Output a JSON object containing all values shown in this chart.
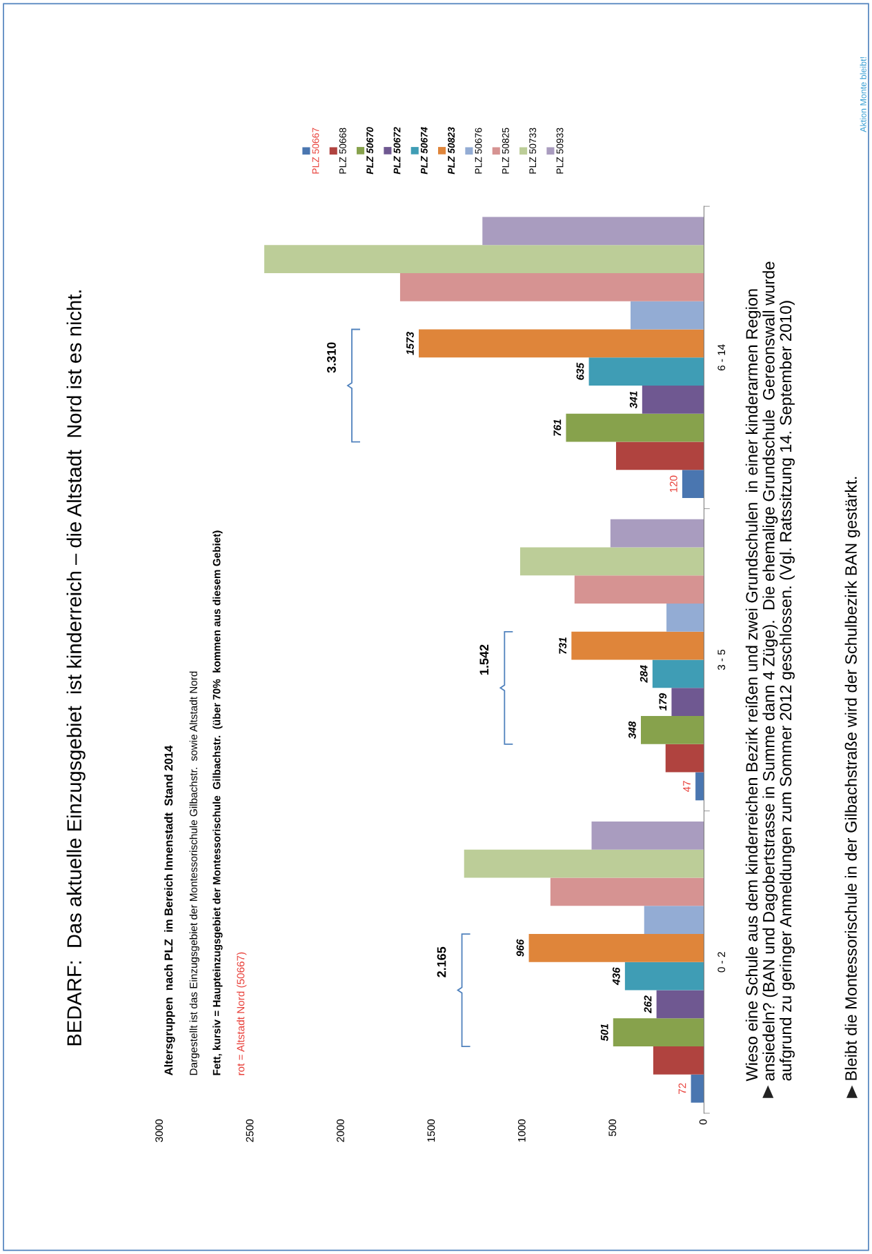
{
  "chart_data": {
    "type": "bar",
    "orientation": "horizontal",
    "title": "BEDARF:  Das aktuelle Einzugsgebiet  ist kinderreich – die Altstadt  Nord ist es nicht.",
    "categories": [
      "6 - 14",
      "3 - 5",
      "0 - 2"
    ],
    "xlim": [
      3000,
      0
    ],
    "xticks": [
      0,
      500,
      1000,
      1500,
      2000,
      2500,
      3000
    ],
    "legend": "top",
    "series": [
      {
        "name": "PLZ 50667",
        "color": "#4a76b0",
        "values": [
          120,
          47,
          72
        ],
        "value_labels": [
          "120",
          "47",
          "72"
        ]
      },
      {
        "name": "PLZ 50668",
        "color": "#b0433f",
        "values": [
          485,
          212,
          280
        ]
      },
      {
        "name": "PLZ 50670",
        "color": "#87a24c",
        "values": [
          761,
          348,
          501
        ],
        "value_labels": [
          "761",
          "348",
          "501"
        ]
      },
      {
        "name": "PLZ 50672",
        "color": "#6f5891",
        "values": [
          341,
          179,
          262
        ],
        "value_labels": [
          "341",
          "179",
          "262"
        ]
      },
      {
        "name": "PLZ 50674",
        "color": "#3f9db5",
        "values": [
          635,
          284,
          436
        ],
        "value_labels": [
          "635",
          "284",
          "436"
        ]
      },
      {
        "name": "PLZ 50823",
        "color": "#df853a",
        "values": [
          1573,
          731,
          966
        ],
        "value_labels": [
          "1573",
          "731",
          "966"
        ]
      },
      {
        "name": "PLZ 50676",
        "color": "#93acd4",
        "values": [
          405,
          207,
          330
        ]
      },
      {
        "name": "PLZ 50825",
        "color": "#d69392",
        "values": [
          1676,
          714,
          847
        ]
      },
      {
        "name": "PLZ 50733",
        "color": "#bccd98",
        "values": [
          2425,
          1014,
          1323
        ]
      },
      {
        "name": "PLZ 50933",
        "color": "#a99cbf",
        "values": [
          1222,
          516,
          620
        ]
      }
    ],
    "annotations": [
      "3.310",
      "1.542",
      "2.165",
      "Altersgruppen  nach PLZ  im Bereich Innenstadt  Stand 2014",
      "Dargestellt ist das Einzugsgebiet der Montessorischule Gilbachstr.  sowie Altstadt Nord",
      "Fett, kursiv = Haupteinzugsgebiet der Montessorischule  Gilbachstr.  (über 70%  kommen aus diesem Gebiet)",
      "rot = Altstadt Nord (50667)",
      "Wieso eine Schule aus dem kinderreichen Bezirk reißen und zwei Grundschulen  in einer kinderarmen Region\nansiedeln? (BAN und Dagobertstrasse in Summe dann 4 Züge).  Die ehemalige Grundschule  Gereonswall wurde\naufgrund zu geringer Anmeldungen zum Sommer 2012 geschlossen. (Vgl. Ratssitzung 14. September 2010)",
      "Bleibt die Montessorischule in der Gilbachstraße wird der Schulbezirk BAN gestärkt.",
      "Aktion Monte bleibt!"
    ]
  }
}
